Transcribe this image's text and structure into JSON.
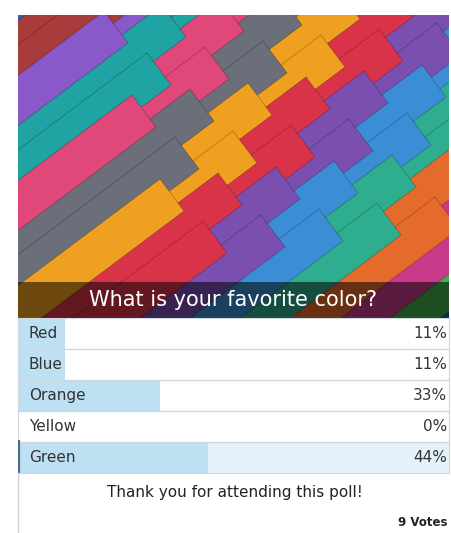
{
  "chart_data": {
    "type": "bar",
    "orientation": "horizontal",
    "title": "What is your favorite color?",
    "categories": [
      "Red",
      "Blue",
      "Orange",
      "Yellow",
      "Green"
    ],
    "values": [
      11,
      11,
      33,
      0,
      44
    ],
    "value_labels": [
      "11%",
      "11%",
      "33%",
      "0%",
      "44%"
    ],
    "data_labels": true,
    "color": "#bde0f3",
    "xlim": [
      0,
      100
    ],
    "tick_labels": false,
    "annotations": [
      "Thank you for attending this poll!",
      "9 Votes"
    ]
  }
}
